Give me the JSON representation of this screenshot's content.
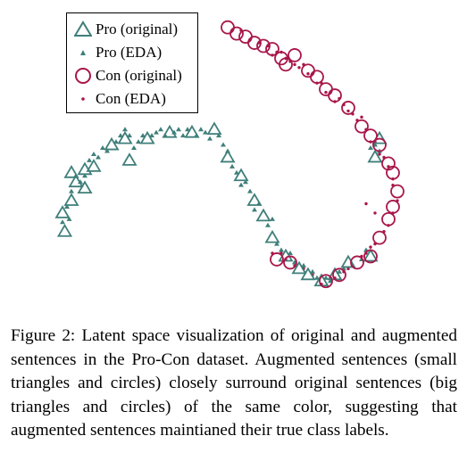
{
  "colors": {
    "pro": "#3f7f7a",
    "con": "#a8174a"
  },
  "legend": {
    "items": [
      {
        "label": "Pro (original)",
        "series": "pro",
        "marker": "triangle-large"
      },
      {
        "label": "Pro (EDA)",
        "series": "pro",
        "marker": "triangle-small"
      },
      {
        "label": "Con (original)",
        "series": "con",
        "marker": "circle-large"
      },
      {
        "label": "Con (EDA)",
        "series": "con",
        "marker": "dot-small"
      }
    ]
  },
  "caption": "Figure 2: Latent space visualization of original and augmented sentences in the Pro-Con dataset. Augmented sentences (small triangles and circles) closely surround original sentences (big triangles and circles) of the same color, suggesting that augmented sentences maintianed their true class labels.",
  "chart_data": {
    "type": "scatter",
    "title": "",
    "xlabel": "",
    "ylabel": "",
    "axes_visible": false,
    "grid": false,
    "legend_position": "top-left",
    "series": [
      {
        "name": "Pro (original)",
        "marker": "triangle-large",
        "points": [
          [
            0.1,
            0.7
          ],
          [
            0.105,
            0.76
          ],
          [
            0.12,
            0.66
          ],
          [
            0.13,
            0.6
          ],
          [
            0.12,
            0.57
          ],
          [
            0.15,
            0.56
          ],
          [
            0.15,
            0.62
          ],
          [
            0.17,
            0.55
          ],
          [
            0.21,
            0.48
          ],
          [
            0.24,
            0.46
          ],
          [
            0.25,
            0.53
          ],
          [
            0.29,
            0.46
          ],
          [
            0.34,
            0.44
          ],
          [
            0.39,
            0.44
          ],
          [
            0.44,
            0.43
          ],
          [
            0.47,
            0.52
          ],
          [
            0.5,
            0.58
          ],
          [
            0.53,
            0.66
          ],
          [
            0.55,
            0.71
          ],
          [
            0.57,
            0.78
          ],
          [
            0.6,
            0.84
          ],
          [
            0.63,
            0.88
          ],
          [
            0.65,
            0.9
          ],
          [
            0.68,
            0.92
          ],
          [
            0.71,
            0.9
          ],
          [
            0.74,
            0.86
          ],
          [
            0.79,
            0.84
          ],
          [
            0.8,
            0.52
          ],
          [
            0.81,
            0.46
          ]
        ]
      },
      {
        "name": "Pro (EDA)",
        "marker": "triangle-small",
        "points": [
          [
            0.1,
            0.73
          ],
          [
            0.11,
            0.68
          ],
          [
            0.115,
            0.72
          ],
          [
            0.12,
            0.63
          ],
          [
            0.13,
            0.58
          ],
          [
            0.14,
            0.6
          ],
          [
            0.15,
            0.58
          ],
          [
            0.16,
            0.53
          ],
          [
            0.17,
            0.51
          ],
          [
            0.18,
            0.52
          ],
          [
            0.19,
            0.49
          ],
          [
            0.2,
            0.5
          ],
          [
            0.22,
            0.47
          ],
          [
            0.23,
            0.45
          ],
          [
            0.24,
            0.43
          ],
          [
            0.25,
            0.45
          ],
          [
            0.26,
            0.49
          ],
          [
            0.27,
            0.47
          ],
          [
            0.28,
            0.45
          ],
          [
            0.3,
            0.45
          ],
          [
            0.31,
            0.44
          ],
          [
            0.32,
            0.43
          ],
          [
            0.33,
            0.45
          ],
          [
            0.35,
            0.44
          ],
          [
            0.36,
            0.43
          ],
          [
            0.37,
            0.45
          ],
          [
            0.38,
            0.43
          ],
          [
            0.4,
            0.45
          ],
          [
            0.41,
            0.43
          ],
          [
            0.42,
            0.44
          ],
          [
            0.43,
            0.46
          ],
          [
            0.45,
            0.45
          ],
          [
            0.46,
            0.48
          ],
          [
            0.47,
            0.5
          ],
          [
            0.48,
            0.55
          ],
          [
            0.49,
            0.57
          ],
          [
            0.5,
            0.61
          ],
          [
            0.51,
            0.6
          ],
          [
            0.52,
            0.63
          ],
          [
            0.53,
            0.69
          ],
          [
            0.54,
            0.67
          ],
          [
            0.56,
            0.74
          ],
          [
            0.57,
            0.72
          ],
          [
            0.58,
            0.8
          ],
          [
            0.59,
            0.82
          ],
          [
            0.61,
            0.83
          ],
          [
            0.62,
            0.86
          ],
          [
            0.64,
            0.87
          ],
          [
            0.66,
            0.89
          ],
          [
            0.67,
            0.91
          ],
          [
            0.69,
            0.91
          ],
          [
            0.7,
            0.92
          ],
          [
            0.72,
            0.89
          ],
          [
            0.73,
            0.88
          ],
          [
            0.75,
            0.87
          ],
          [
            0.77,
            0.85
          ],
          [
            0.78,
            0.82
          ],
          [
            0.79,
            0.49
          ],
          [
            0.8,
            0.48
          ],
          [
            0.81,
            0.5
          ]
        ]
      },
      {
        "name": "Con (original)",
        "marker": "circle-large",
        "points": [
          [
            0.47,
            0.1
          ],
          [
            0.49,
            0.12
          ],
          [
            0.51,
            0.13
          ],
          [
            0.53,
            0.15
          ],
          [
            0.55,
            0.16
          ],
          [
            0.57,
            0.17
          ],
          [
            0.59,
            0.2
          ],
          [
            0.6,
            0.22
          ],
          [
            0.62,
            0.19
          ],
          [
            0.65,
            0.24
          ],
          [
            0.67,
            0.26
          ],
          [
            0.69,
            0.3
          ],
          [
            0.71,
            0.32
          ],
          [
            0.74,
            0.36
          ],
          [
            0.77,
            0.42
          ],
          [
            0.79,
            0.45
          ],
          [
            0.81,
            0.48
          ],
          [
            0.83,
            0.54
          ],
          [
            0.84,
            0.57
          ],
          [
            0.85,
            0.63
          ],
          [
            0.84,
            0.68
          ],
          [
            0.83,
            0.72
          ],
          [
            0.81,
            0.78
          ],
          [
            0.79,
            0.84
          ],
          [
            0.76,
            0.86
          ],
          [
            0.72,
            0.9
          ],
          [
            0.69,
            0.92
          ],
          [
            0.61,
            0.86
          ],
          [
            0.58,
            0.85
          ]
        ]
      },
      {
        "name": "Con (EDA)",
        "marker": "dot-small",
        "points": [
          [
            0.48,
            0.11
          ],
          [
            0.5,
            0.11
          ],
          [
            0.52,
            0.14
          ],
          [
            0.54,
            0.15
          ],
          [
            0.56,
            0.16
          ],
          [
            0.57,
            0.19
          ],
          [
            0.58,
            0.18
          ],
          [
            0.59,
            0.18
          ],
          [
            0.6,
            0.2
          ],
          [
            0.61,
            0.21
          ],
          [
            0.62,
            0.22
          ],
          [
            0.63,
            0.23
          ],
          [
            0.64,
            0.22
          ],
          [
            0.65,
            0.25
          ],
          [
            0.66,
            0.25
          ],
          [
            0.67,
            0.28
          ],
          [
            0.68,
            0.28
          ],
          [
            0.69,
            0.31
          ],
          [
            0.7,
            0.31
          ],
          [
            0.71,
            0.34
          ],
          [
            0.72,
            0.33
          ],
          [
            0.73,
            0.35
          ],
          [
            0.74,
            0.37
          ],
          [
            0.75,
            0.38
          ],
          [
            0.76,
            0.4
          ],
          [
            0.77,
            0.39
          ],
          [
            0.78,
            0.43
          ],
          [
            0.79,
            0.47
          ],
          [
            0.8,
            0.47
          ],
          [
            0.81,
            0.51
          ],
          [
            0.82,
            0.52
          ],
          [
            0.83,
            0.55
          ],
          [
            0.84,
            0.59
          ],
          [
            0.84,
            0.61
          ],
          [
            0.85,
            0.66
          ],
          [
            0.84,
            0.7
          ],
          [
            0.83,
            0.74
          ],
          [
            0.82,
            0.76
          ],
          [
            0.8,
            0.8
          ],
          [
            0.79,
            0.81
          ],
          [
            0.78,
            0.83
          ],
          [
            0.77,
            0.84
          ],
          [
            0.75,
            0.87
          ],
          [
            0.74,
            0.88
          ],
          [
            0.73,
            0.89
          ],
          [
            0.71,
            0.91
          ],
          [
            0.7,
            0.91
          ],
          [
            0.68,
            0.93
          ],
          [
            0.66,
            0.9
          ],
          [
            0.64,
            0.88
          ],
          [
            0.62,
            0.87
          ],
          [
            0.6,
            0.85
          ],
          [
            0.57,
            0.83
          ],
          [
            0.59,
            0.83
          ],
          [
            0.78,
            0.67
          ],
          [
            0.8,
            0.7
          ]
        ]
      }
    ]
  }
}
